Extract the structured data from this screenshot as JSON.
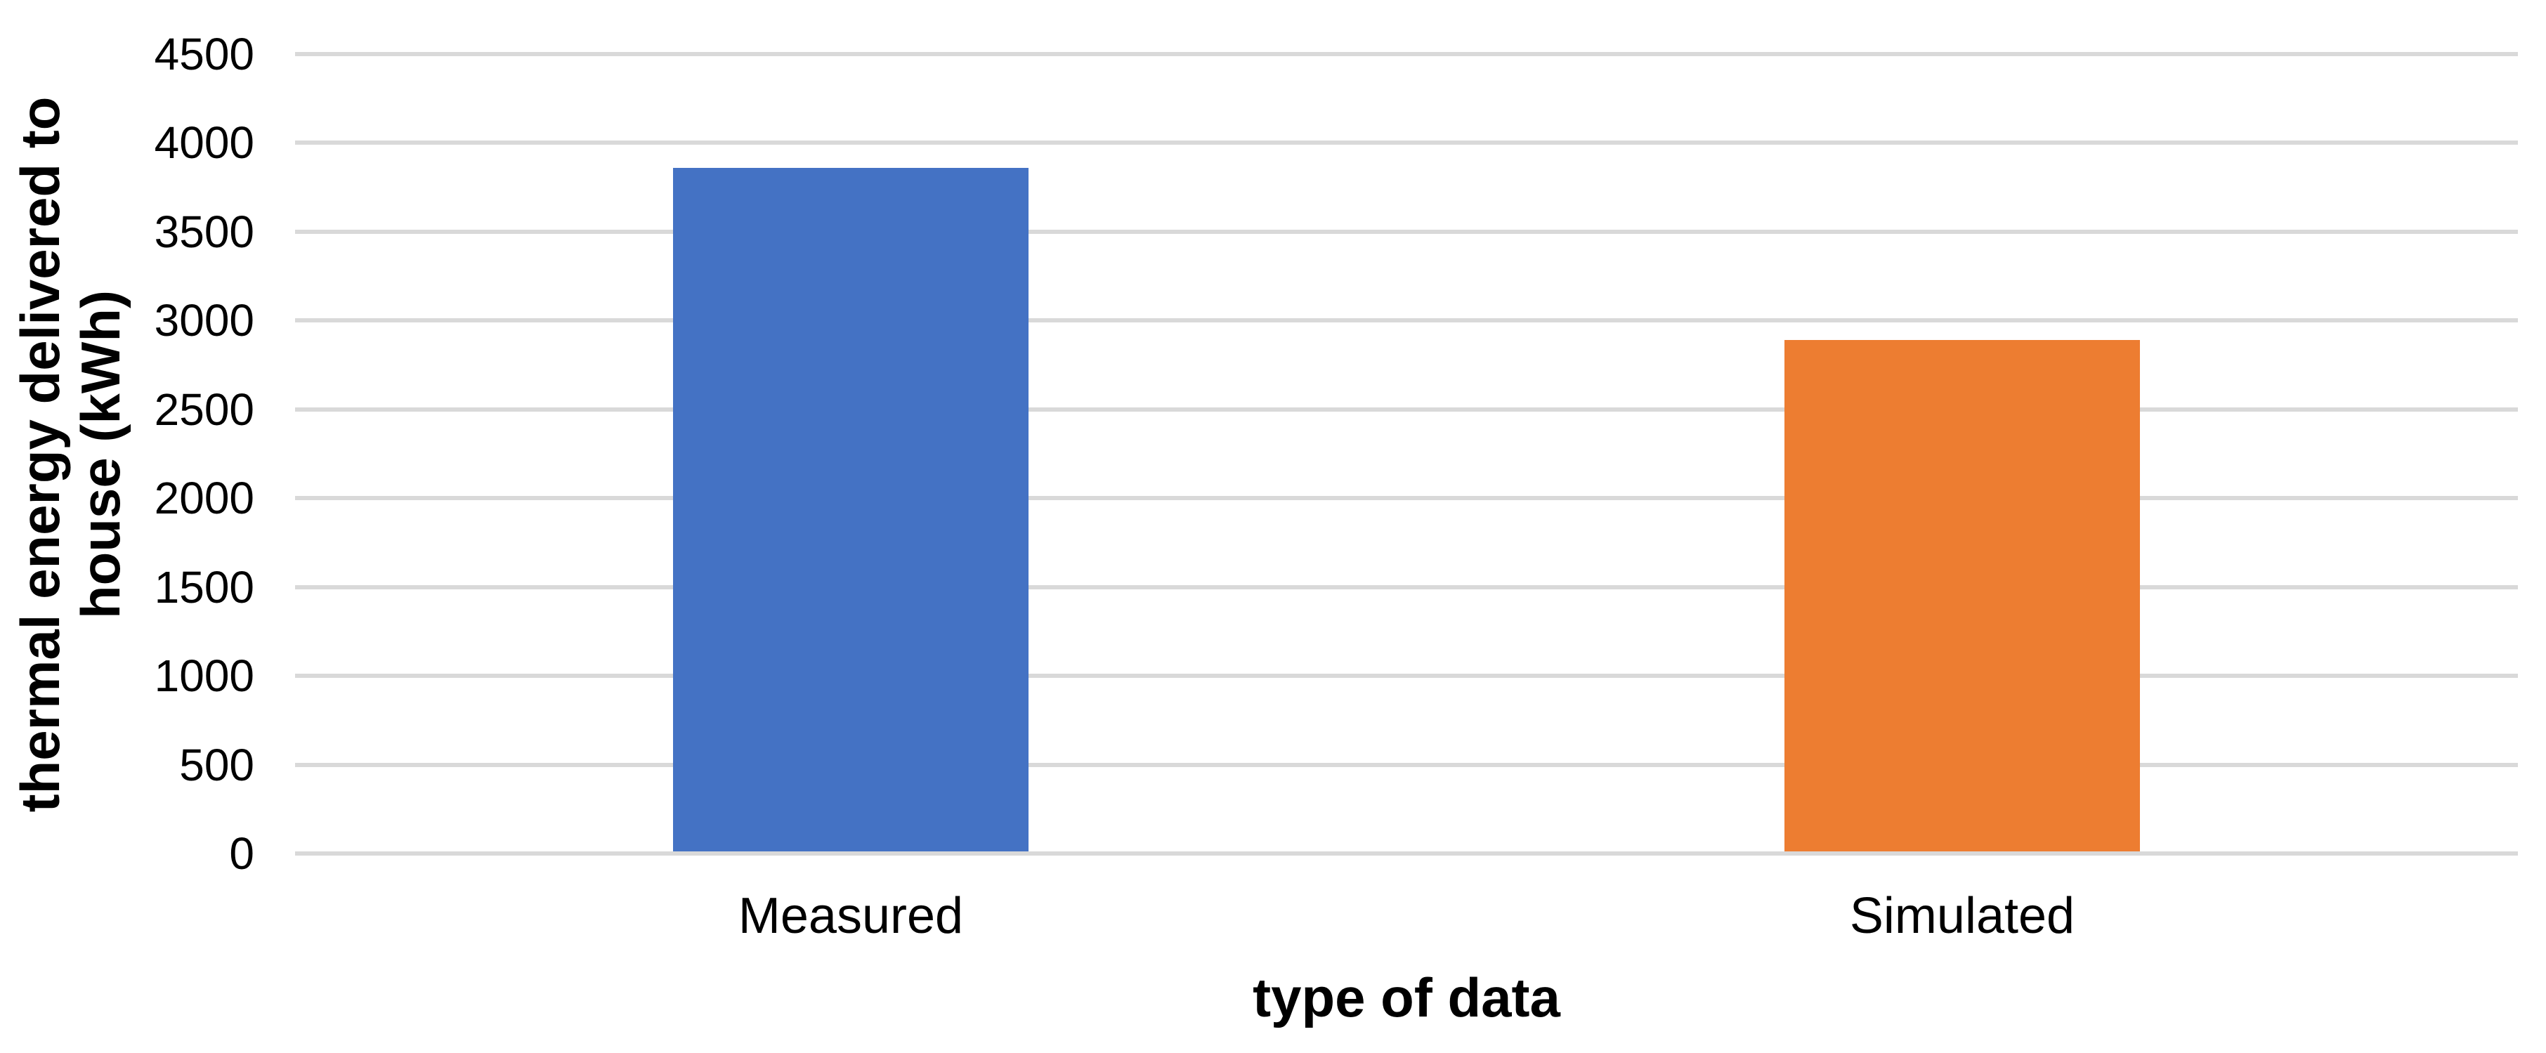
{
  "chart_data": {
    "type": "bar",
    "categories": [
      "Measured",
      "Simulated"
    ],
    "values": [
      3860,
      2890
    ],
    "bar_colors": [
      "#4472C4",
      "#ED7D31"
    ],
    "xlabel": "type of data",
    "ylabel": "thermal energy delivered to house (kWh)",
    "ylabel_lines": [
      "thermal energy delivered to",
      "house (kWh)"
    ],
    "ylim": [
      0,
      4500
    ],
    "ytick_step": 500,
    "yticks": [
      0,
      500,
      1000,
      1500,
      2000,
      2500,
      3000,
      3500,
      4000,
      4500
    ],
    "grid": "horizontal-only",
    "gridline_color": "#D9D9D9",
    "background_color": "#FFFFFF",
    "text_color": "#000000",
    "legend": "none",
    "title": ""
  }
}
